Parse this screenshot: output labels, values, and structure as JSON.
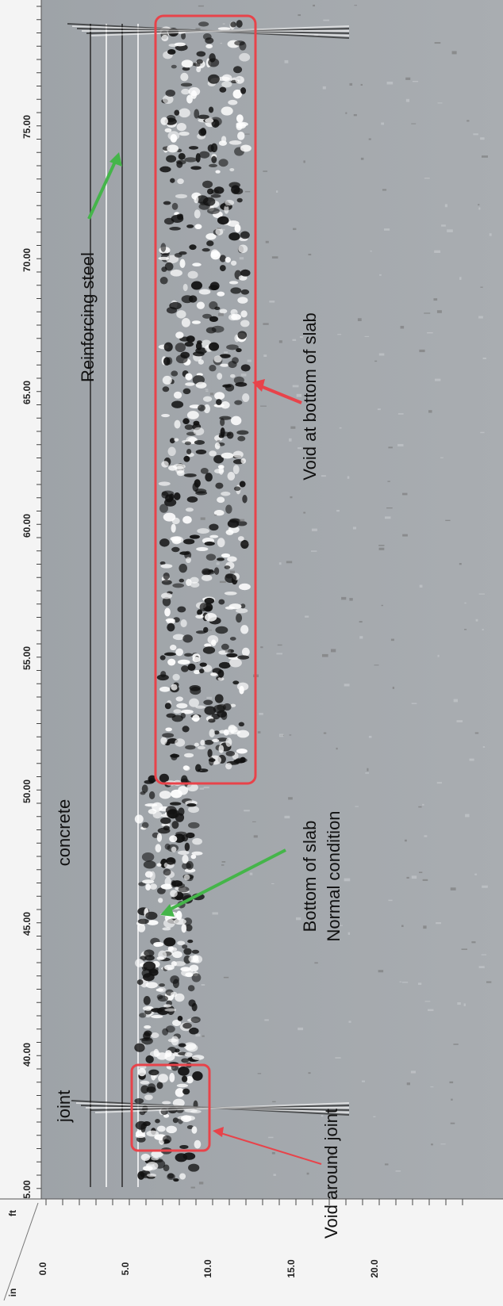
{
  "axis": {
    "distance_ticks": [
      "75.00",
      "70.00",
      "65.00",
      "60.00",
      "55.00",
      "50.00",
      "45.00",
      "40.00",
      "5.00"
    ],
    "depth_ticks": [
      "0.0",
      "5.0",
      "10.0",
      "15.0",
      "20.0"
    ],
    "distance_unit": "ft",
    "depth_unit": "in"
  },
  "annotations": {
    "joint": "joint",
    "concrete": "concrete",
    "reinforcing_steel": "Reinforcing steel",
    "bottom_of_slab": "Bottom of slab",
    "normal_condition": "Normal condition",
    "void_around_joint": "Void around joint",
    "void_at_bottom": "Void at bottom of slab"
  }
}
